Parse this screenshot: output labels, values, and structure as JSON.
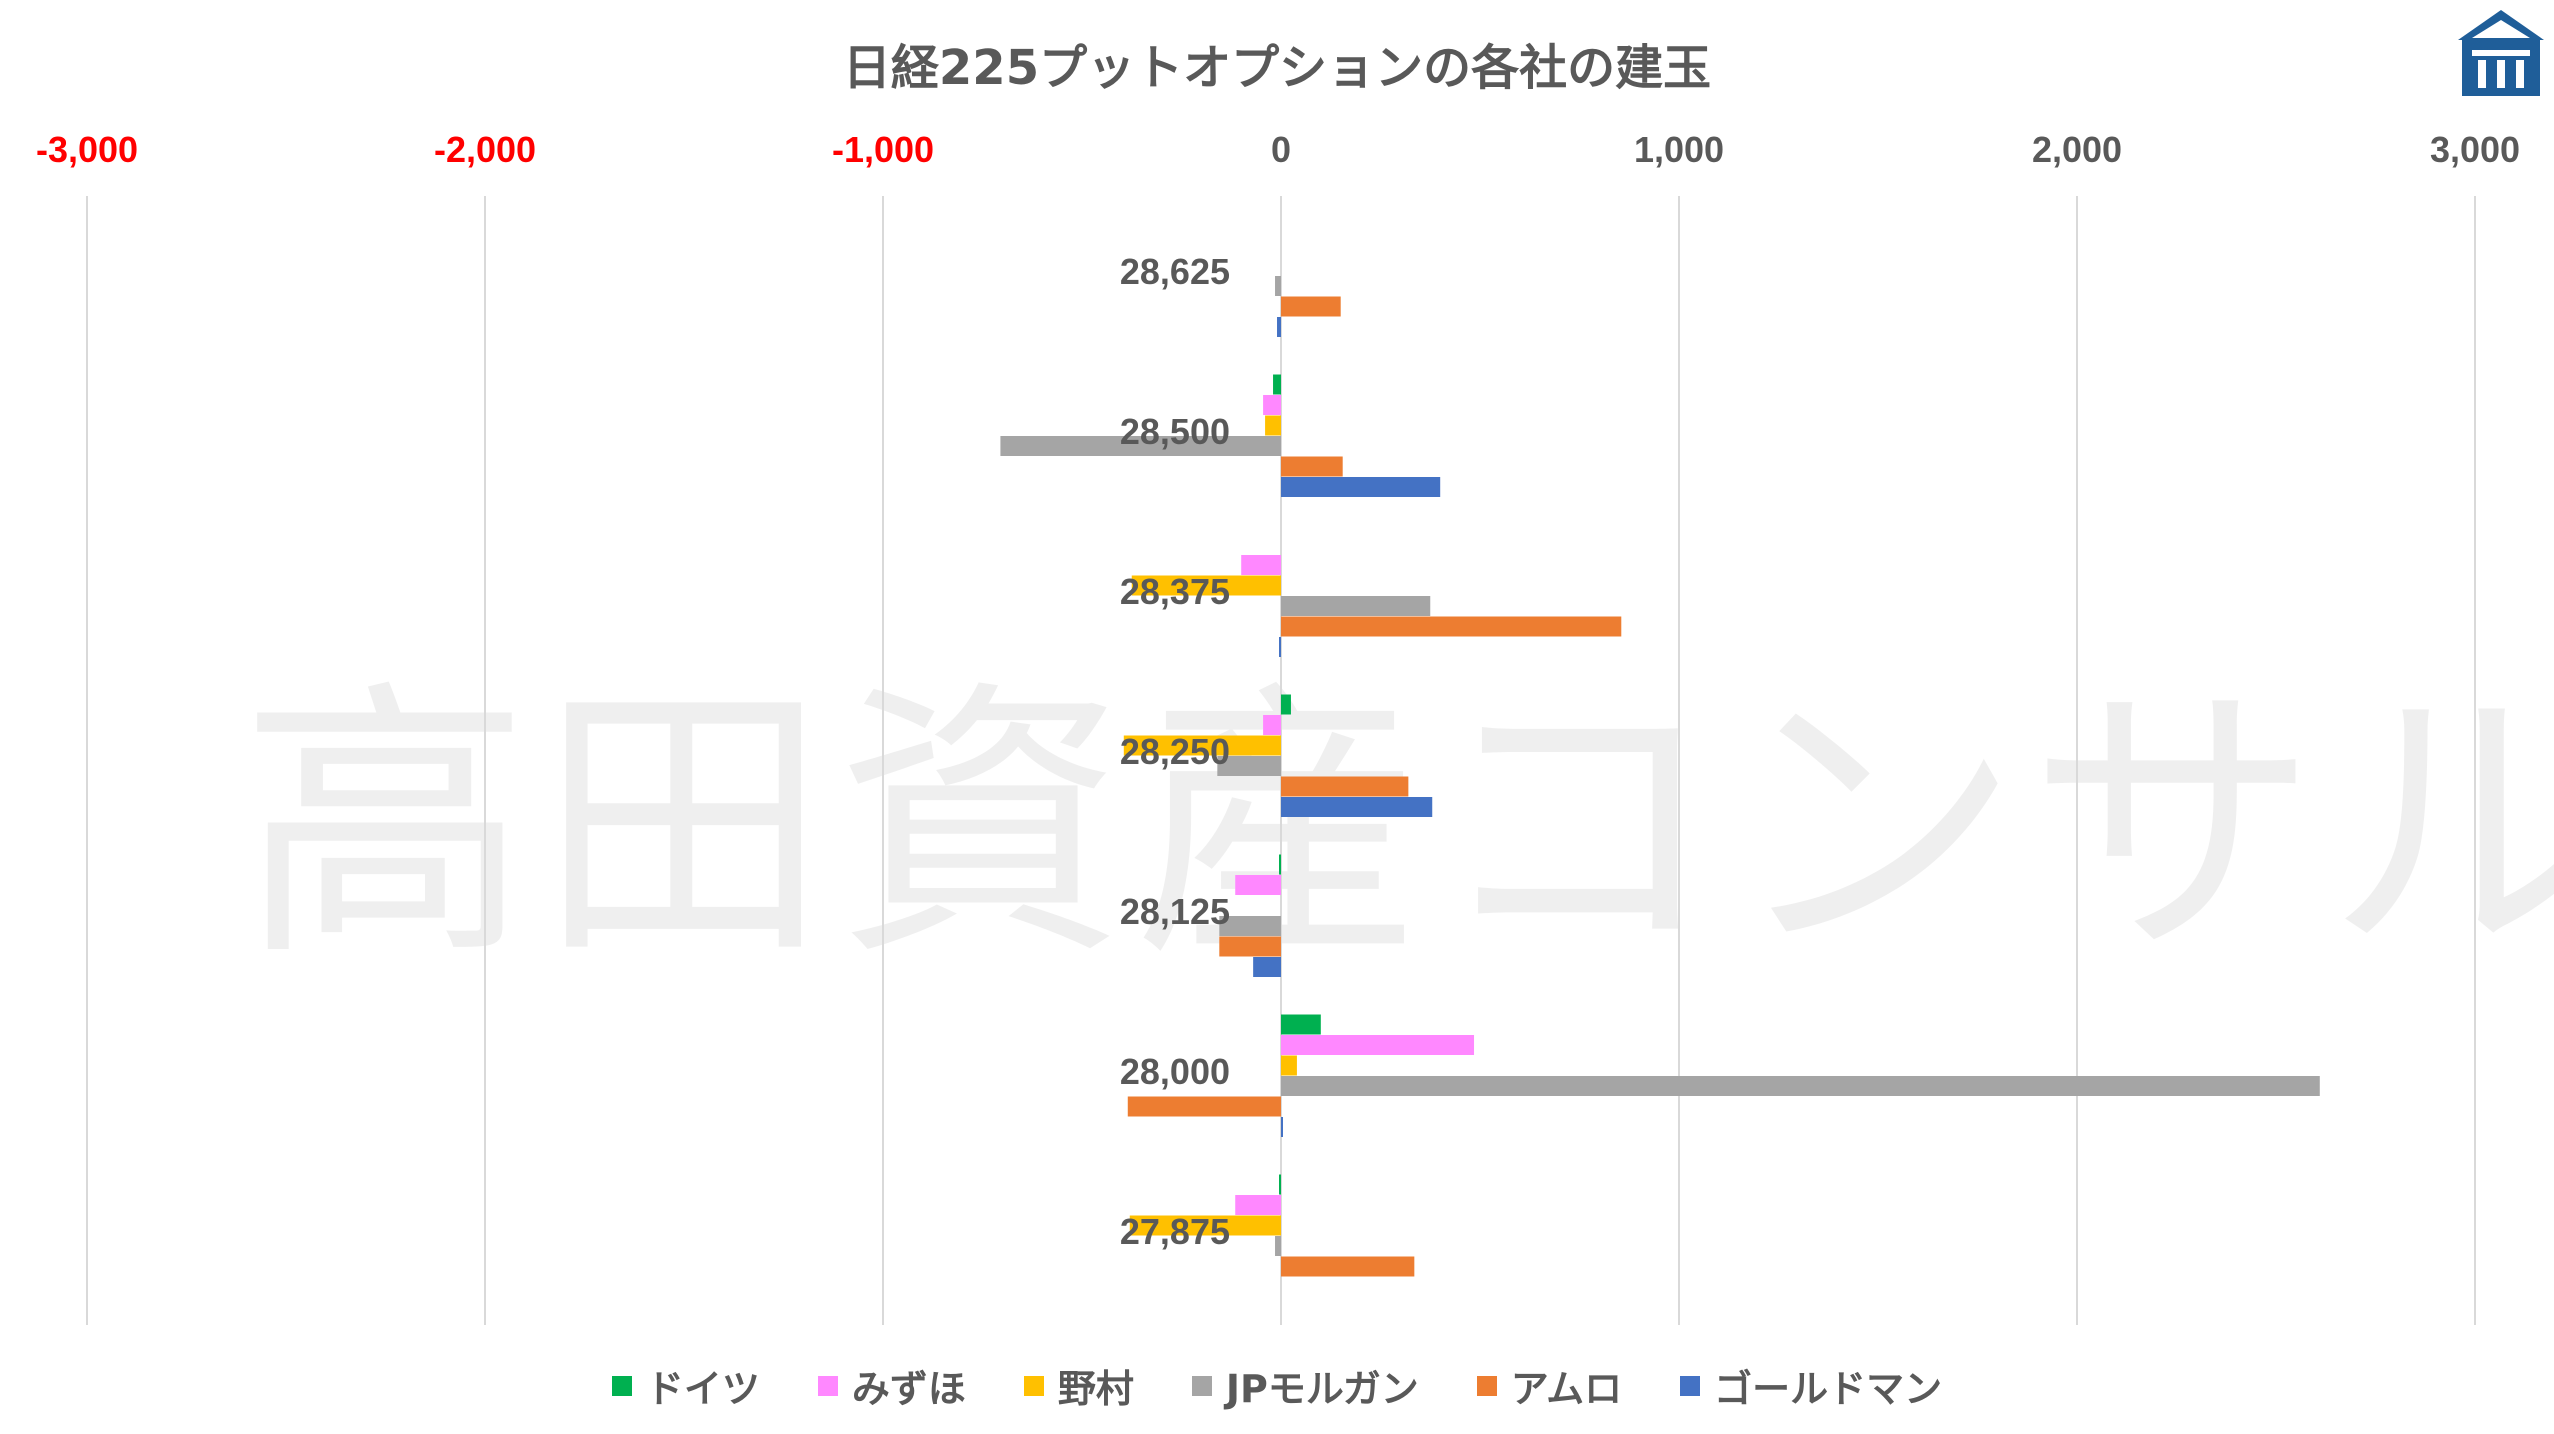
{
  "title": "日経225プットオプションの各社の建玉",
  "watermark": "高田資産コンサル",
  "logo_icon": "bank-building-icon",
  "chart_data": {
    "type": "bar",
    "orientation": "horizontal",
    "title": "日経225プットオプションの各社の建玉",
    "categories": [
      "28,625",
      "28,500",
      "28,375",
      "28,250",
      "28,125",
      "28,000",
      "27,875"
    ],
    "xlim": [
      -3000,
      3000
    ],
    "x_ticks": [
      "-3,000",
      "-2,000",
      "-1,000",
      "0",
      "1,000",
      "2,000",
      "3,000"
    ],
    "x_tick_values": [
      -3000,
      -2000,
      -1000,
      0,
      1000,
      2000,
      3000
    ],
    "negative_tick_color": "#FF0000",
    "positive_tick_color": "#595959",
    "axis_position": "top",
    "grid": true,
    "legend_position": "bottom",
    "series": [
      {
        "name": "ドイツ",
        "color": "#00B050",
        "values": [
          0,
          -20,
          0,
          25,
          -5,
          100,
          -5
        ]
      },
      {
        "name": "みずほ",
        "color": "#FF88FF",
        "values": [
          0,
          -45,
          -100,
          -45,
          -115,
          485,
          -115
        ]
      },
      {
        "name": "野村",
        "color": "#FFC000",
        "values": [
          0,
          -40,
          -375,
          -395,
          0,
          40,
          -380
        ]
      },
      {
        "name": "JPモルガン",
        "color": "#A5A5A5",
        "values": [
          -15,
          -705,
          375,
          -160,
          -155,
          2610,
          -15
        ]
      },
      {
        "name": "アムロ",
        "color": "#ED7D31",
        "values": [
          150,
          155,
          855,
          320,
          -155,
          -385,
          335
        ]
      },
      {
        "name": "ゴールドマン",
        "color": "#4472C4",
        "values": [
          -10,
          400,
          -5,
          380,
          -70,
          5,
          0
        ]
      }
    ]
  }
}
